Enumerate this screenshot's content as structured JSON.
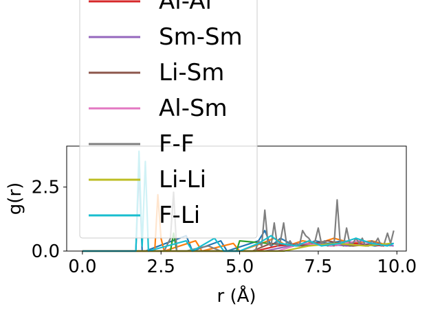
{
  "chart_data": {
    "type": "line",
    "title": "",
    "xlabel": "r (Å)",
    "ylabel": "g(r)",
    "xlim": [
      -0.5,
      10.3
    ],
    "ylim": [
      0,
      4.1
    ],
    "xticks": [
      0.0,
      2.5,
      5.0,
      7.5,
      10.0
    ],
    "xtick_labels": [
      "0.0",
      "2.5",
      "5.0",
      "7.5",
      "10.0"
    ],
    "yticks": [
      0.0,
      2.5
    ],
    "ytick_labels": [
      "0.0",
      "2.5"
    ],
    "grid": false,
    "legend_position": "upper-left, overlapping plot",
    "series": [
      {
        "name": "",
        "color": "#1f77b4",
        "x": [
          0,
          1.7,
          1.8,
          1.9,
          2.0,
          3.3,
          3.5,
          4.4,
          4.6,
          5.6,
          5.8,
          6.0,
          6.3,
          6.6,
          7.0,
          7.4,
          7.8,
          8.3,
          8.8,
          9.3,
          9.9
        ],
        "y": [
          0,
          0,
          3.2,
          0,
          0,
          0.6,
          0,
          0.4,
          0,
          0.4,
          0.8,
          0.2,
          0.5,
          0.3,
          0.2,
          0.4,
          0.3,
          0.4,
          0.3,
          0.2,
          0.3
        ]
      },
      {
        "name": "",
        "color": "#ff7f0e",
        "x": [
          0,
          2.3,
          2.4,
          2.5,
          2.6,
          3.6,
          3.8,
          4.8,
          5.0,
          5.7,
          6.1,
          6.5,
          7.0,
          7.5,
          8.0,
          8.6,
          9.2,
          9.8
        ],
        "y": [
          0,
          0,
          2.2,
          0.5,
          0,
          0.4,
          0,
          0.3,
          0,
          0.3,
          0.5,
          0.2,
          0.4,
          0.3,
          0.5,
          0.3,
          0.4,
          0.2
        ]
      },
      {
        "name": "",
        "color": "#2ca02c",
        "x": [
          0,
          2.8,
          2.9,
          3.0,
          4.9,
          5.0,
          5.9,
          6.8,
          7.6,
          8.5,
          9.4
        ],
        "y": [
          0,
          0,
          0.7,
          0,
          0,
          0.4,
          0.3,
          0.2,
          0.3,
          0.2,
          0.3
        ]
      },
      {
        "name": "Al-Al",
        "color": "#d62728",
        "x": [
          0,
          5.5,
          6.2,
          7.1,
          7.9,
          8.7,
          9.6
        ],
        "y": [
          0,
          0,
          0.2,
          0.3,
          0.2,
          0.3,
          0.2
        ]
      },
      {
        "name": "Sm-Sm",
        "color": "#9467bd",
        "x": [
          0,
          5.8,
          6.6,
          7.5,
          8.4,
          9.3,
          9.9
        ],
        "y": [
          0,
          0,
          0.2,
          0.3,
          0.2,
          0.3,
          0.2
        ]
      },
      {
        "name": "Li-Sm",
        "color": "#8c564b",
        "x": [
          0,
          5.4,
          6.0,
          6.9,
          7.8,
          8.6,
          9.5
        ],
        "y": [
          0,
          0,
          0.3,
          0.2,
          0.4,
          0.2,
          0.3
        ]
      },
      {
        "name": "Al-Sm",
        "color": "#e377c2",
        "x": [
          0,
          6.2,
          7.0,
          7.9,
          8.8,
          9.7
        ],
        "y": [
          0,
          0,
          0.3,
          0.2,
          0.4,
          0.2
        ]
      },
      {
        "name": "F-F",
        "color": "#7f7f7f",
        "x": [
          0,
          2.6,
          2.8,
          2.9,
          3.0,
          3.3,
          4.0,
          4.4,
          4.6,
          5.2,
          5.5,
          5.6,
          5.7,
          5.8,
          5.9,
          6.0,
          6.1,
          6.2,
          6.3,
          6.4,
          6.5,
          6.6,
          6.7,
          6.8,
          6.9,
          7.0,
          7.1,
          7.2,
          7.3,
          7.4,
          7.5,
          7.6,
          7.7,
          7.8,
          7.9,
          8.0,
          8.1,
          8.2,
          8.3,
          8.4,
          8.5,
          8.6,
          8.7,
          8.8,
          8.9,
          9.0,
          9.1,
          9.2,
          9.3,
          9.4,
          9.5,
          9.6,
          9.7,
          9.8,
          9.9
        ],
        "y": [
          0,
          0,
          0.5,
          2.3,
          0,
          0,
          0.2,
          0,
          0,
          0,
          0,
          0.4,
          0.2,
          1.6,
          0.3,
          0.2,
          1.1,
          0.2,
          0.4,
          1.1,
          0.2,
          0.4,
          0.2,
          0.3,
          0.2,
          0.8,
          0.6,
          0.5,
          0.3,
          0.4,
          0.9,
          0.3,
          0.4,
          0.2,
          0.3,
          0.2,
          2.0,
          0.3,
          0.2,
          0.9,
          0.3,
          0.3,
          0.5,
          0.3,
          0.5,
          0.2,
          0.2,
          0.4,
          0.3,
          0.5,
          0.2,
          0.3,
          0.7,
          0.3,
          0.8
        ]
      },
      {
        "name": "Li-Li",
        "color": "#bcbd22",
        "x": [
          0,
          6.4,
          7.2,
          8.1,
          9.0,
          9.8
        ],
        "y": [
          0,
          0,
          0.2,
          0.3,
          0.2,
          0.3
        ]
      },
      {
        "name": "F-Li",
        "color": "#17becf",
        "x": [
          0,
          1.7,
          1.8,
          1.9,
          2.0,
          2.1,
          3.3,
          3.5,
          4.2,
          4.5,
          5.0,
          5.6,
          6.0,
          6.3,
          6.8,
          7.2,
          7.6,
          8.2,
          8.7,
          9.2,
          9.7,
          9.9
        ],
        "y": [
          0,
          0,
          3.9,
          0.2,
          3.5,
          0,
          0.4,
          0,
          0.5,
          0,
          0,
          0.3,
          0.6,
          0.3,
          0.2,
          0.4,
          0.2,
          0.3,
          0.5,
          0.3,
          0.2,
          0.3
        ]
      }
    ]
  }
}
